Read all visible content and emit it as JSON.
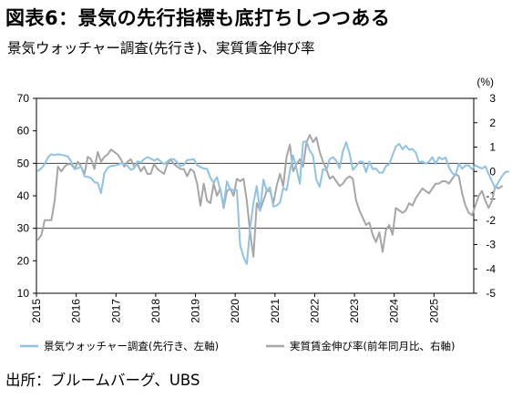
{
  "title": "図表6：景気の先行指標も底打ちしつつある",
  "subtitle": "景気ウォッチャー調査(先行き)、実質賃金伸び率",
  "source": "出所：ブルームバーグ、UBS",
  "chart_data": {
    "type": "line",
    "x_categories": [
      "2015",
      "2016",
      "2017",
      "2018",
      "2019",
      "2020",
      "2021",
      "2022",
      "2023",
      "2024",
      "2025"
    ],
    "y_left": {
      "lim": [
        10,
        70
      ],
      "ticks": [
        10,
        20,
        30,
        40,
        50,
        60,
        70
      ]
    },
    "y_right": {
      "lim": [
        -5,
        3
      ],
      "ticks": [
        -5,
        -4,
        -3,
        -2,
        -1,
        0,
        1,
        2,
        3
      ],
      "unit": "(%)"
    },
    "grid_y": [
      30,
      50
    ],
    "legend_position": "bottom",
    "series": [
      {
        "name": "景気ウォッチャー調査(先行き、左軸)",
        "axis": "left",
        "color": "#8fc3e6",
        "start": [
          2015,
          1
        ],
        "values": [
          47.7,
          48.5,
          49.8,
          51.9,
          52.8,
          52.5,
          52.8,
          52.6,
          52.4,
          52.1,
          50.5,
          48.2,
          48.5,
          49.0,
          46.0,
          45.8,
          45.5,
          44.2,
          44.0,
          40.8,
          47.0,
          48.6,
          49.2,
          49.3,
          49.5,
          50.0,
          49.8,
          49.2,
          48.0,
          48.5,
          50.6,
          50.2,
          51.3,
          51.9,
          51.5,
          50.8,
          51.4,
          50.6,
          49.7,
          50.6,
          51.3,
          51.3,
          50.3,
          49.1,
          49.5,
          51.0,
          51.1,
          51.3,
          49.4,
          48.9,
          48.4,
          48.3,
          45.6,
          44.0,
          45.8,
          41.7,
          36.9,
          44.5,
          41.9,
          41.8,
          41.8,
          24.7,
          21.2,
          19.0,
          30.0,
          37.8,
          43.0,
          35.3,
          45.0,
          41.6,
          42.6,
          36.7,
          37.0,
          37.9,
          42.4,
          41.7,
          47.6,
          52.4,
          48.4,
          43.7,
          56.6,
          56.8,
          53.9,
          52.4,
          44.9,
          42.8,
          48.2,
          47.8,
          51.3,
          51.9,
          50.8,
          48.5,
          53.7,
          56.5,
          53.1,
          48.0,
          49.1,
          50.5,
          50.5,
          47.3,
          50.5,
          48.2,
          48.4,
          47.1,
          47.1,
          49.2,
          49.7,
          52.5,
          55.2,
          56.0,
          54.3,
          55.4,
          54.2,
          54.4,
          53.3,
          50.3,
          50.6,
          49.9,
          50.5,
          51.9,
          49.9,
          51.9,
          51.2,
          51.8,
          48.8,
          47.0,
          46.3,
          49.9,
          48.3,
          49.3,
          49.4,
          48.2,
          49.4,
          48.8,
          48.4,
          49.1,
          46.7,
          44.5,
          42.3,
          44.3,
          46.0,
          47.3,
          47.5
        ]
      },
      {
        "name": "実質賃金伸び率(前年同月比、右軸)",
        "axis": "right",
        "color": "#a6a6a6",
        "start": [
          2015,
          1
        ],
        "values": [
          -2.8,
          -2.6,
          -2.0,
          -2.0,
          -2.0,
          -1.2,
          0.2,
          0.0,
          0.2,
          0.3,
          0.3,
          0.1,
          0.4,
          0.2,
          -0.1,
          0.6,
          0.5,
          0.1,
          0.8,
          0.4,
          0.6,
          0.7,
          0.9,
          0.8,
          0.7,
          0.5,
          0.2,
          0.4,
          0.5,
          0.2,
          0.3,
          0.0,
          0.2,
          -0.1,
          -0.1,
          0.3,
          0.1,
          0.0,
          -0.1,
          0.3,
          0.5,
          0.3,
          0.2,
          0.1,
          0.1,
          -0.2,
          0.1,
          0.0,
          -0.5,
          -1.4,
          -0.5,
          -1.2,
          -1.3,
          -0.5,
          -1.0,
          -0.7,
          -1.5,
          -0.8,
          -0.7,
          -1.0,
          -0.3,
          -0.4,
          -0.3,
          -1.2,
          -2.5,
          -3.5,
          -1.3,
          -1.6,
          -1.2,
          -0.8,
          -0.8,
          -1.3,
          -0.6,
          -0.1,
          -0.6,
          0.6,
          1.1,
          0.0,
          0.3,
          0.5,
          0.2,
          1.2,
          1.5,
          1.2,
          1.4,
          0.8,
          0.4,
          0.1,
          -0.3,
          -0.2,
          -0.4,
          -0.6,
          -0.5,
          -0.3,
          -0.2,
          -0.3,
          -1.2,
          -1.6,
          -1.9,
          -2.2,
          -2.1,
          -2.6,
          -2.9,
          -2.5,
          -3.3,
          -2.4,
          -2.2,
          -2.6,
          -1.5,
          -1.6,
          -1.7,
          -1.6,
          -1.3,
          -1.4,
          -1.1,
          -0.9,
          -0.7,
          -0.8,
          -0.9,
          -0.7,
          -0.5,
          -0.5,
          -0.4,
          -0.4,
          -0.5,
          -0.3,
          -0.1,
          -0.2,
          -0.9,
          -1.4,
          -1.7,
          -1.8,
          -1.4,
          -1.0,
          -0.8,
          -1.2,
          -1.5,
          -1.2,
          -0.6,
          -0.7,
          -0.6
        ]
      }
    ]
  }
}
